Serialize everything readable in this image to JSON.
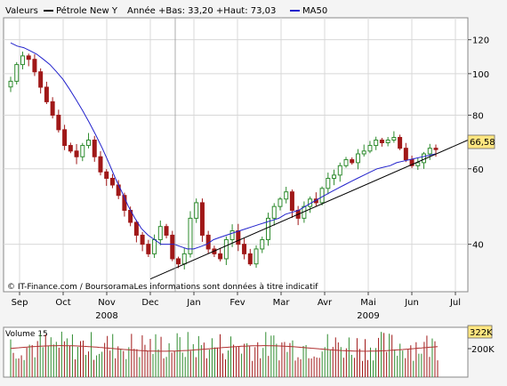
{
  "legend": {
    "series_label": "Valeurs",
    "instrument_label": "Pétrole New Y",
    "stats_label": "Année +Bas: 33,20 +Haut: 73,03",
    "ma_label": "MA50"
  },
  "watermark": "© IT-Finance.com / BoursoramaLes informations sont données à titre indicatif",
  "last_price_label": "66,58",
  "volume_title": "Volume 15",
  "volume_last_label": "322K",
  "volume_tick_label": "200K",
  "colors": {
    "background": "#f4f4f4",
    "plot_bg": "#ffffff",
    "grid": "#d8d8d8",
    "up_candle": "#2e8b2e",
    "down_candle": "#a01818",
    "ma_line": "#2222cc",
    "trend_line": "#000000",
    "price_label_bg": "#ffe680",
    "volume_avg": "#b03030"
  },
  "chart_data": [
    {
      "type": "candlestick",
      "title": "Pétrole New Y",
      "y_scale": "log",
      "ylim": [
        31,
        135
      ],
      "y_ticks": [
        40,
        60,
        80,
        100,
        120
      ],
      "x_ticks": [
        "Sep",
        "Oct",
        "Nov",
        "Dec",
        "Jan",
        "Fev",
        "Mar",
        "Avr",
        "Mai",
        "Jun",
        "Jul"
      ],
      "x_ticks_months_index": [
        0,
        1,
        2,
        3,
        4,
        5,
        6,
        7,
        8,
        9,
        10
      ],
      "years": [
        {
          "label": "2008",
          "at_month": 2
        },
        {
          "label": "2009",
          "at_month": 8
        }
      ],
      "year_low": 33.2,
      "year_high": 73.03,
      "last_close": 66.58,
      "series": [
        {
          "name": "Pétrole New Y",
          "close_by_week": [
            96,
            105,
            110,
            108,
            101,
            93,
            86,
            80,
            74,
            68,
            66,
            64,
            68,
            70,
            64,
            59,
            57,
            55,
            52,
            48,
            45,
            42,
            40,
            38,
            41,
            44,
            42,
            37,
            36,
            38,
            46,
            50,
            42,
            39,
            38,
            37,
            41,
            43,
            40,
            38,
            36,
            39,
            41,
            46,
            49,
            51,
            53,
            48,
            46,
            49,
            51,
            50,
            54,
            57,
            58,
            61,
            63,
            62,
            65,
            66,
            68,
            70,
            69,
            70,
            71,
            67,
            63,
            61,
            62,
            65,
            67,
            66.58
          ]
        },
        {
          "name": "MA50",
          "values_by_week": [
            118,
            116,
            115,
            113,
            111,
            108,
            105,
            101,
            97,
            92,
            87,
            82,
            77,
            72,
            67,
            62,
            57,
            53,
            49,
            46,
            43.5,
            42,
            41,
            40,
            40,
            40,
            39.5,
            39,
            39,
            39.5,
            40,
            41,
            41.5,
            42,
            42.5,
            43,
            43.5,
            44,
            44.5,
            45,
            45.5,
            46,
            47,
            47.5,
            48,
            49,
            50,
            51,
            52,
            53,
            54,
            55,
            56,
            57,
            58,
            59,
            60,
            60.5,
            61,
            62,
            62.5,
            63,
            63.5,
            64,
            64.5,
            65
          ]
        }
      ],
      "trend_line": {
        "start": {
          "month_index": 3,
          "value": 33.2
        },
        "end": {
          "month_index": 11.2,
          "value": 70
        }
      }
    },
    {
      "type": "bar",
      "title": "Volume 15",
      "last_value": "322K",
      "y_ticks": [
        "200K"
      ],
      "average_line": true
    }
  ]
}
